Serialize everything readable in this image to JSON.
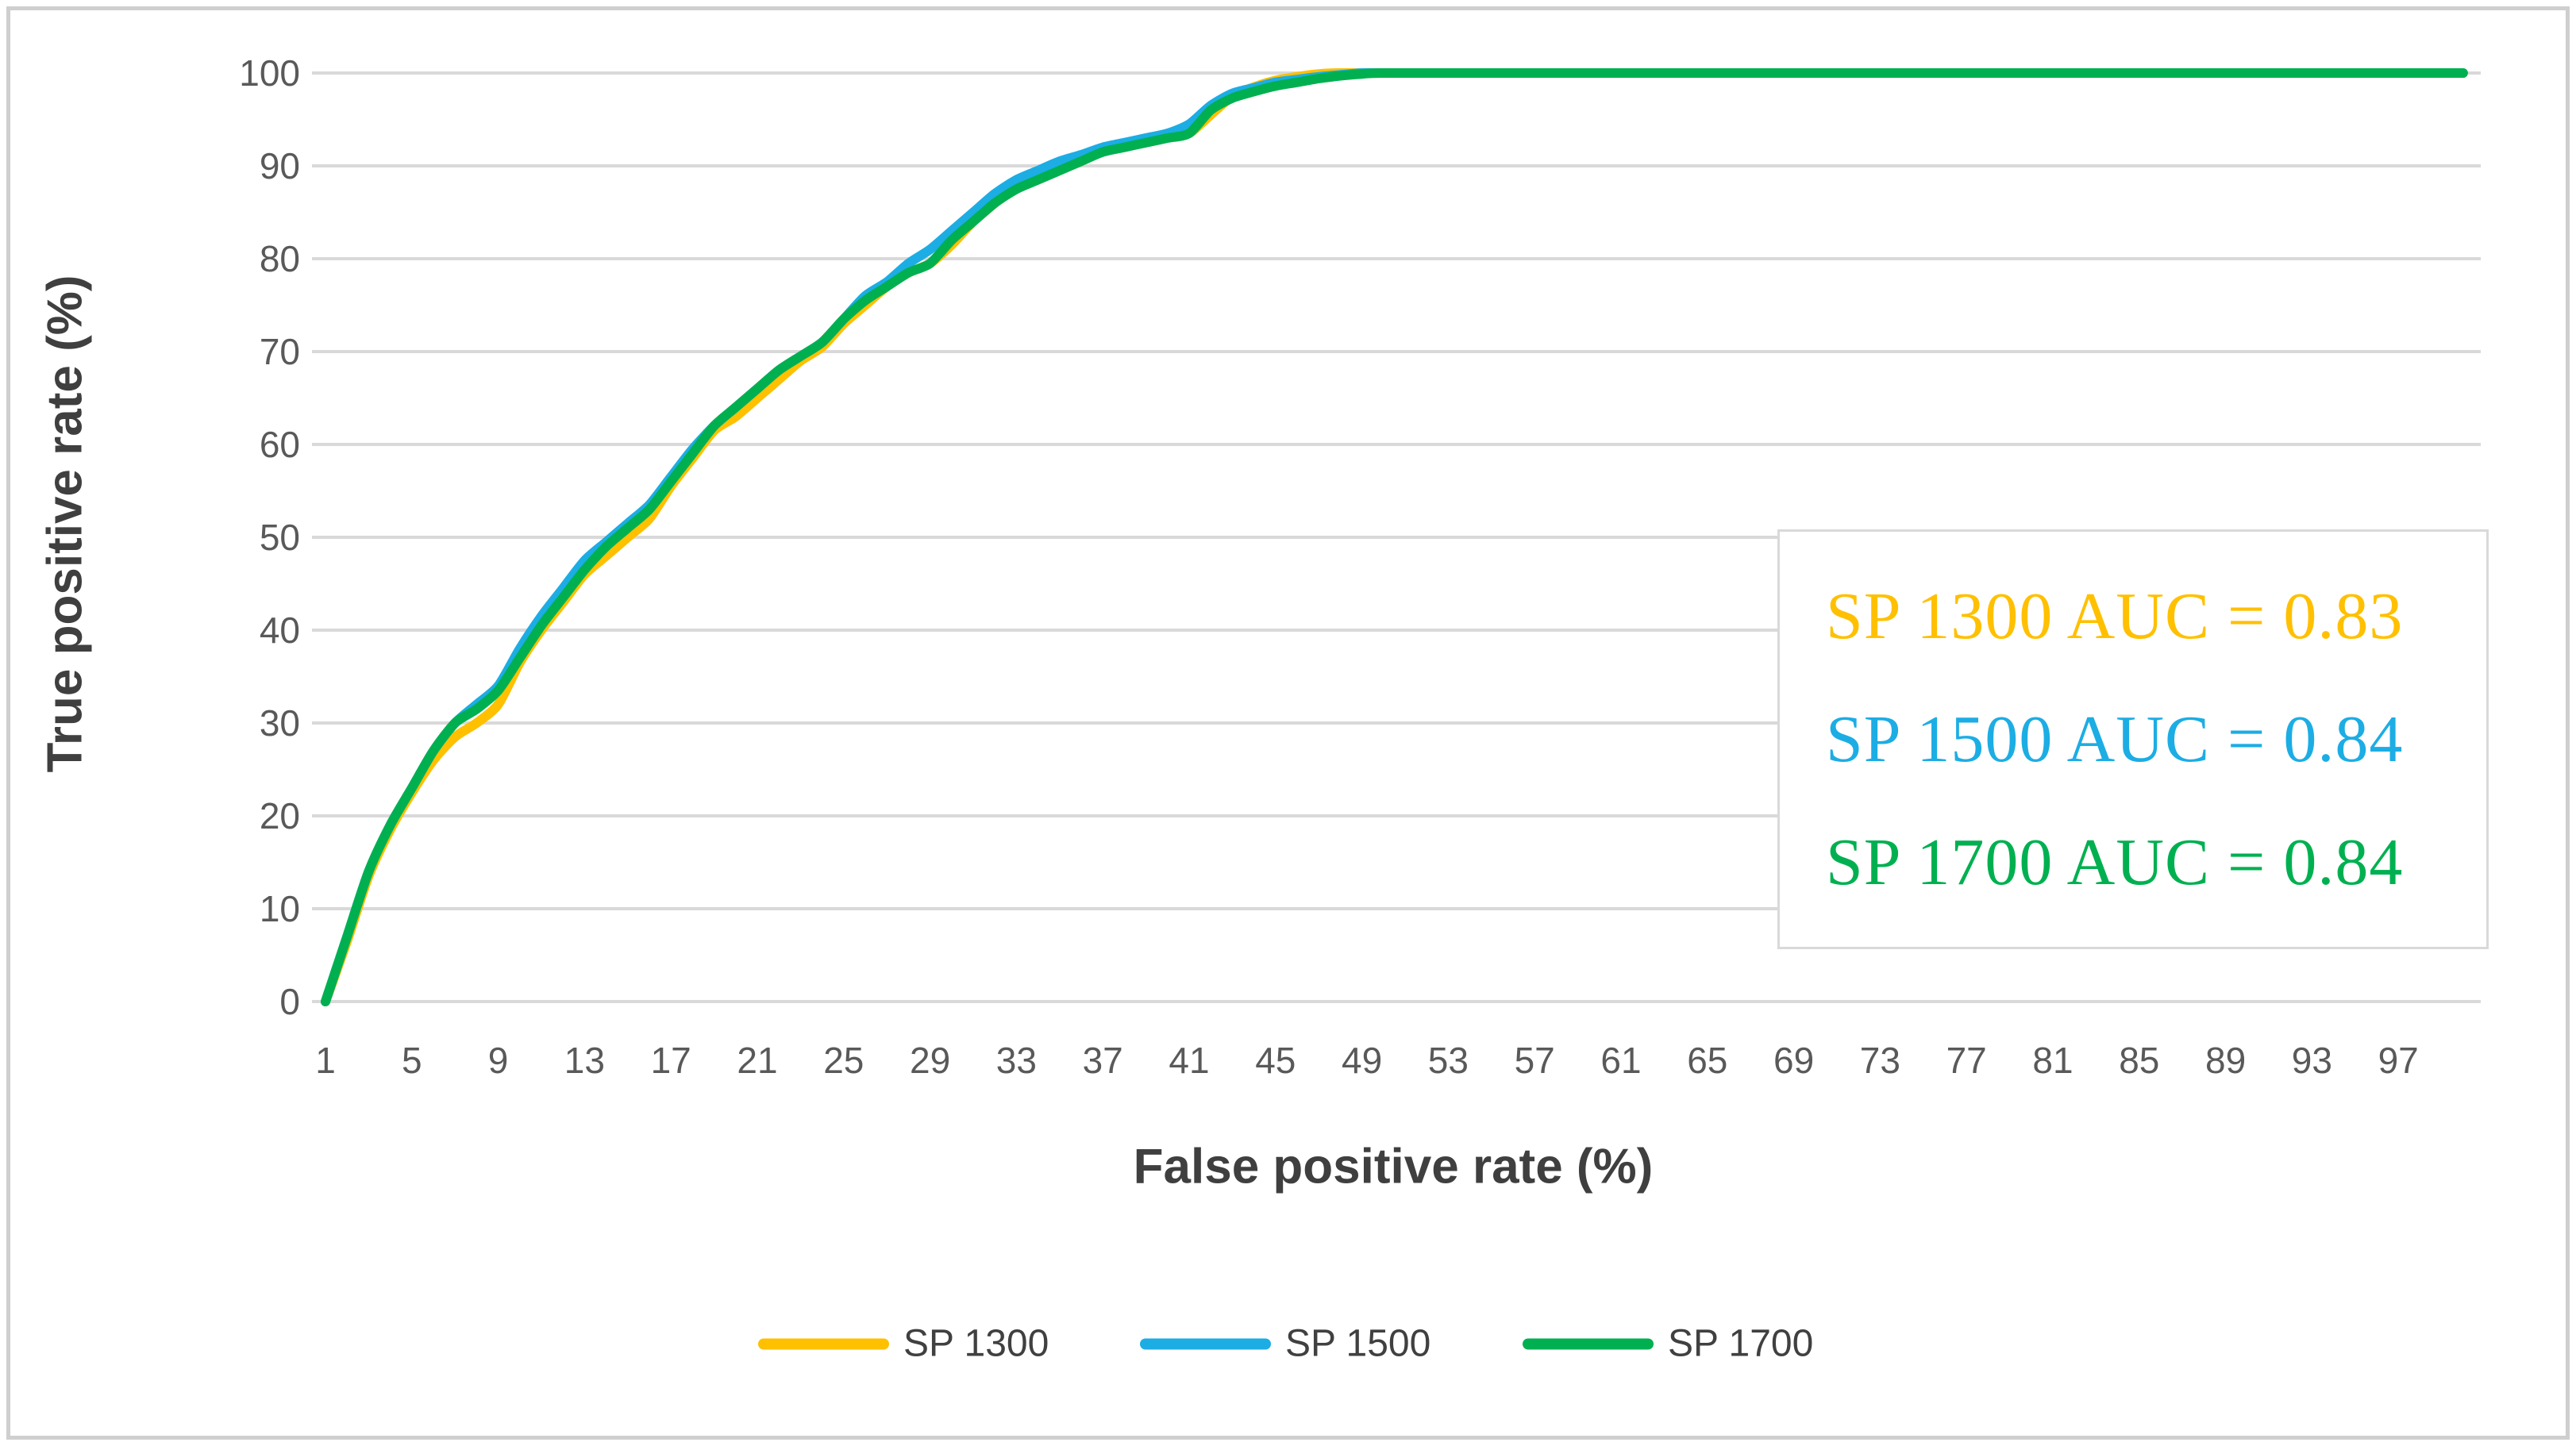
{
  "chart_data": {
    "type": "line",
    "title": "",
    "xlabel": "False positive rate (%)",
    "ylabel": "True positive rate (%)",
    "xlim": [
      1,
      100
    ],
    "ylim": [
      0,
      100
    ],
    "x_tick_labels": [
      1,
      5,
      9,
      13,
      17,
      21,
      25,
      29,
      33,
      37,
      41,
      45,
      49,
      53,
      57,
      61,
      65,
      69,
      73,
      77,
      81,
      85,
      89,
      93,
      97
    ],
    "y_tick_labels": [
      0,
      10,
      20,
      30,
      40,
      50,
      60,
      70,
      80,
      90,
      100
    ],
    "grid": "horizontal-only",
    "gridline_color": "#D9D9D9",
    "tick_label_color": "#595959",
    "axis_title_color": "#3F3F3F",
    "legend_position": "bottom",
    "annotation_box": {
      "border_color": "#D9D9D9",
      "lines": [
        {
          "text": "SP 1300 AUC = 0.83",
          "color": "#FFC000"
        },
        {
          "text": "SP 1500 AUC = 0.84",
          "color": "#1CADE4"
        },
        {
          "text": "SP 1700 AUC = 0.84",
          "color": "#00B050"
        }
      ]
    },
    "series": [
      {
        "name": "SP 1300",
        "color": "#FFC000",
        "auc": 0.83,
        "points": [
          [
            1,
            0
          ],
          [
            2,
            6.5
          ],
          [
            3,
            13.5
          ],
          [
            4,
            18.5
          ],
          [
            5,
            22.5
          ],
          [
            6,
            26
          ],
          [
            7,
            28.5
          ],
          [
            8,
            30
          ],
          [
            9,
            32
          ],
          [
            10,
            36.5
          ],
          [
            11,
            40
          ],
          [
            12,
            43
          ],
          [
            13,
            46
          ],
          [
            14,
            48
          ],
          [
            15,
            50
          ],
          [
            16,
            52
          ],
          [
            17,
            55.5
          ],
          [
            18,
            58.5
          ],
          [
            19,
            61.5
          ],
          [
            20,
            63
          ],
          [
            21,
            65
          ],
          [
            22,
            67
          ],
          [
            23,
            69
          ],
          [
            24,
            70.5
          ],
          [
            25,
            73
          ],
          [
            26,
            75
          ],
          [
            27,
            77
          ],
          [
            28,
            78.5
          ],
          [
            29,
            79.5
          ],
          [
            30,
            81.5
          ],
          [
            31,
            84
          ],
          [
            32,
            86
          ],
          [
            33,
            88
          ],
          [
            34,
            89
          ],
          [
            35,
            90
          ],
          [
            36,
            91
          ],
          [
            37,
            91.8
          ],
          [
            38,
            92.3
          ],
          [
            39,
            92.8
          ],
          [
            40,
            93.2
          ],
          [
            41,
            93.5
          ],
          [
            42,
            95.5
          ],
          [
            43,
            97.5
          ],
          [
            44,
            98.5
          ],
          [
            45,
            99.2
          ],
          [
            46,
            99.6
          ],
          [
            47,
            99.9
          ],
          [
            48,
            100
          ],
          [
            49,
            100
          ],
          [
            50,
            100
          ],
          [
            55,
            100
          ],
          [
            60,
            100
          ],
          [
            70,
            100
          ],
          [
            80,
            100
          ],
          [
            90,
            100
          ],
          [
            100,
            100
          ]
        ]
      },
      {
        "name": "SP 1500",
        "color": "#1CADE4",
        "auc": 0.84,
        "points": [
          [
            1,
            0
          ],
          [
            2,
            7
          ],
          [
            3,
            14
          ],
          [
            4,
            19
          ],
          [
            5,
            23
          ],
          [
            6,
            27
          ],
          [
            7,
            30
          ],
          [
            8,
            32
          ],
          [
            9,
            34
          ],
          [
            10,
            38
          ],
          [
            11,
            41.5
          ],
          [
            12,
            44.5
          ],
          [
            13,
            47.5
          ],
          [
            14,
            49.5
          ],
          [
            15,
            51.5
          ],
          [
            16,
            53.5
          ],
          [
            17,
            56.5
          ],
          [
            18,
            59.5
          ],
          [
            19,
            62
          ],
          [
            20,
            64
          ],
          [
            21,
            66
          ],
          [
            22,
            68
          ],
          [
            23,
            69.5
          ],
          [
            24,
            71
          ],
          [
            25,
            73.5
          ],
          [
            26,
            76
          ],
          [
            27,
            77.5
          ],
          [
            28,
            79.5
          ],
          [
            29,
            81
          ],
          [
            30,
            83
          ],
          [
            31,
            85
          ],
          [
            32,
            87
          ],
          [
            33,
            88.5
          ],
          [
            34,
            89.5
          ],
          [
            35,
            90.5
          ],
          [
            36,
            91.2
          ],
          [
            37,
            92
          ],
          [
            38,
            92.5
          ],
          [
            39,
            93
          ],
          [
            40,
            93.5
          ],
          [
            41,
            94.5
          ],
          [
            42,
            96.5
          ],
          [
            43,
            97.8
          ],
          [
            44,
            98.4
          ],
          [
            45,
            99
          ],
          [
            46,
            99.3
          ],
          [
            47,
            99.6
          ],
          [
            48,
            99.8
          ],
          [
            49,
            100
          ],
          [
            50,
            100
          ],
          [
            55,
            100
          ],
          [
            60,
            100
          ],
          [
            70,
            100
          ],
          [
            80,
            100
          ],
          [
            90,
            100
          ],
          [
            100,
            100
          ]
        ]
      },
      {
        "name": "SP 1700",
        "color": "#00B050",
        "auc": 0.84,
        "points": [
          [
            1,
            0
          ],
          [
            2,
            7
          ],
          [
            3,
            14
          ],
          [
            4,
            19
          ],
          [
            5,
            23
          ],
          [
            6,
            27
          ],
          [
            7,
            30
          ],
          [
            8,
            31.5
          ],
          [
            9,
            33.5
          ],
          [
            10,
            37
          ],
          [
            11,
            40.5
          ],
          [
            12,
            43.5
          ],
          [
            13,
            46.5
          ],
          [
            14,
            49
          ],
          [
            15,
            51
          ],
          [
            16,
            53
          ],
          [
            17,
            56
          ],
          [
            18,
            59
          ],
          [
            19,
            62
          ],
          [
            20,
            64
          ],
          [
            21,
            66
          ],
          [
            22,
            68
          ],
          [
            23,
            69.5
          ],
          [
            24,
            71
          ],
          [
            25,
            73.5
          ],
          [
            26,
            75.5
          ],
          [
            27,
            77
          ],
          [
            28,
            78.5
          ],
          [
            29,
            79.5
          ],
          [
            30,
            82
          ],
          [
            31,
            84
          ],
          [
            32,
            86
          ],
          [
            33,
            87.5
          ],
          [
            34,
            88.5
          ],
          [
            35,
            89.5
          ],
          [
            36,
            90.5
          ],
          [
            37,
            91.5
          ],
          [
            38,
            92
          ],
          [
            39,
            92.5
          ],
          [
            40,
            93
          ],
          [
            41,
            93.5
          ],
          [
            42,
            96
          ],
          [
            43,
            97.3
          ],
          [
            44,
            98
          ],
          [
            45,
            98.6
          ],
          [
            46,
            99
          ],
          [
            47,
            99.4
          ],
          [
            48,
            99.7
          ],
          [
            49,
            99.9
          ],
          [
            50,
            100
          ],
          [
            55,
            100
          ],
          [
            60,
            100
          ],
          [
            70,
            100
          ],
          [
            80,
            100
          ],
          [
            90,
            100
          ],
          [
            100,
            100
          ]
        ]
      }
    ]
  }
}
